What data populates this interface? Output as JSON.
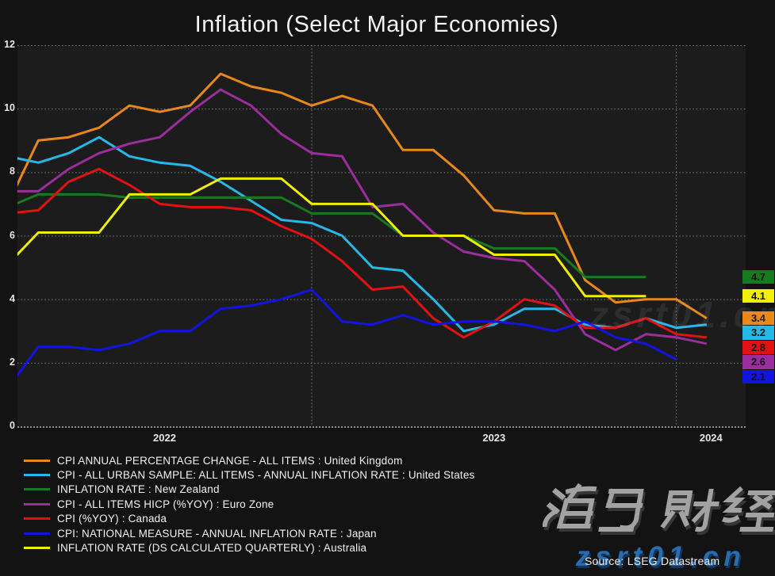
{
  "title": "Inflation (Select Major Economies)",
  "source": "Source: LSEG Datastream",
  "watermarks": {
    "brand": "海马财经",
    "site": "zsrt01.cn",
    "faint": "zsrt01.cn"
  },
  "chart_data": {
    "type": "line",
    "title": "Inflation (Select Major Economies)",
    "ylabel": "",
    "xlabel": "",
    "ylim": [
      0,
      12
    ],
    "y_ticks": [
      0,
      2,
      4,
      6,
      8,
      10,
      12
    ],
    "x_tick_labels": [
      "2022",
      "2023",
      "2024"
    ],
    "grid": "dotted",
    "legend_position": "bottom-left",
    "months": [
      "2022-03",
      "2022-04",
      "2022-05",
      "2022-06",
      "2022-07",
      "2022-08",
      "2022-09",
      "2022-10",
      "2022-11",
      "2022-12",
      "2023-01",
      "2023-02",
      "2023-03",
      "2023-04",
      "2023-05",
      "2023-06",
      "2023-07",
      "2023-08",
      "2023-09",
      "2023-10",
      "2023-11",
      "2023-12",
      "2024-01",
      "2024-02"
    ],
    "series": [
      {
        "id": "united-kingdom",
        "label": "CPI ANNUAL PERCENTAGE CHANGE - ALL ITEMS : United Kingdom",
        "color": "#E8881A",
        "last_value": 3.4,
        "values": [
          7.0,
          9.0,
          9.1,
          9.4,
          10.1,
          9.9,
          10.1,
          11.1,
          10.7,
          10.5,
          10.1,
          10.4,
          10.1,
          8.7,
          8.7,
          7.9,
          6.8,
          6.7,
          6.7,
          4.6,
          3.9,
          4.0,
          4.0,
          3.4
        ]
      },
      {
        "id": "united-states",
        "label": "CPI - ALL URBAN SAMPLE: ALL ITEMS - ANNUAL INFLATION RATE : United States",
        "color": "#27B8EA",
        "last_value": 3.2,
        "values": [
          8.5,
          8.3,
          8.6,
          9.1,
          8.5,
          8.3,
          8.2,
          7.7,
          7.1,
          6.5,
          6.4,
          6.0,
          5.0,
          4.9,
          4.0,
          3.0,
          3.2,
          3.7,
          3.7,
          3.2,
          3.1,
          3.4,
          3.1,
          3.2
        ]
      },
      {
        "id": "new-zealand",
        "label": "INFLATION RATE : New Zealand",
        "color": "#177A1F",
        "last_value": 4.7,
        "values": [
          6.9,
          7.3,
          7.3,
          7.3,
          7.2,
          7.2,
          7.2,
          7.2,
          7.2,
          7.2,
          6.7,
          6.7,
          6.7,
          6.0,
          6.0,
          6.0,
          5.6,
          5.6,
          5.6,
          4.7,
          4.7,
          4.7
        ]
      },
      {
        "id": "euro-zone",
        "label": "CPI - ALL ITEMS HICP (%YOY) : Euro Zone",
        "color": "#9C2D9E",
        "last_value": 2.6,
        "values": [
          7.4,
          7.4,
          8.1,
          8.6,
          8.9,
          9.1,
          9.9,
          10.6,
          10.1,
          9.2,
          8.6,
          8.5,
          6.9,
          7.0,
          6.1,
          5.5,
          5.3,
          5.2,
          4.3,
          2.9,
          2.4,
          2.9,
          2.8,
          2.6
        ]
      },
      {
        "id": "canada",
        "label": "CPI (%YOY) : Canada",
        "color": "#E21212",
        "last_value": 2.8,
        "values": [
          6.7,
          6.8,
          7.7,
          8.1,
          7.6,
          7.0,
          6.9,
          6.9,
          6.8,
          6.3,
          5.9,
          5.2,
          4.3,
          4.4,
          3.4,
          2.8,
          3.3,
          4.0,
          3.8,
          3.1,
          3.1,
          3.4,
          2.9,
          2.8
        ]
      },
      {
        "id": "japan",
        "label": "CPI: NATIONAL MEASURE - ANNUAL INFLATION RATE : Japan",
        "color": "#1414E0",
        "last_value": 2.1,
        "values": [
          1.2,
          2.5,
          2.5,
          2.4,
          2.6,
          3.0,
          3.0,
          3.7,
          3.8,
          4.0,
          4.3,
          3.3,
          3.2,
          3.5,
          3.2,
          3.3,
          3.3,
          3.2,
          3.0,
          3.3,
          2.8,
          2.6,
          2.1
        ]
      },
      {
        "id": "australia",
        "label": "INFLATION RATE (DS CALCULATED QUARTERLY) : Australia",
        "color": "#F0F000",
        "last_value": 4.1,
        "values": [
          5.1,
          6.1,
          6.1,
          6.1,
          7.3,
          7.3,
          7.3,
          7.8,
          7.8,
          7.8,
          7.0,
          7.0,
          7.0,
          6.0,
          6.0,
          6.0,
          5.4,
          5.4,
          5.4,
          4.1,
          4.1,
          4.1
        ]
      }
    ],
    "end_labels": [
      {
        "text": "4.7",
        "bg": "#177A1F"
      },
      {
        "text": "4.1",
        "bg": "#F0F000"
      },
      {
        "text": "3.4",
        "bg": "#E8881A"
      },
      {
        "text": "3.2",
        "bg": "#27B8EA"
      },
      {
        "text": "2.8",
        "bg": "#E21212"
      },
      {
        "text": "2.6",
        "bg": "#9C2D9E"
      },
      {
        "text": "2.1",
        "bg": "#1414E0"
      }
    ]
  }
}
